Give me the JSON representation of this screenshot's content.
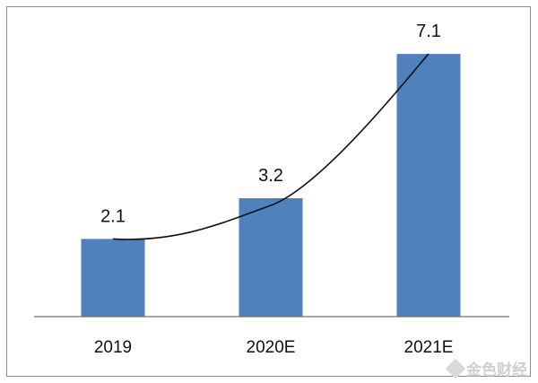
{
  "chart_data": {
    "type": "bar",
    "categories": [
      "2019",
      "2020E",
      "2021E"
    ],
    "values": [
      2.1,
      3.2,
      7.1
    ],
    "data_labels": [
      "2.1",
      "3.2",
      "7.1"
    ],
    "title": "",
    "xlabel": "",
    "ylabel": "",
    "ylim": [
      0,
      8
    ],
    "grid": false,
    "legend": "none",
    "bar_color": "#4f81bd",
    "trend_line": true
  },
  "watermark": {
    "text": "金色财经",
    "logo_icon": "jinse-diamond-icon"
  }
}
